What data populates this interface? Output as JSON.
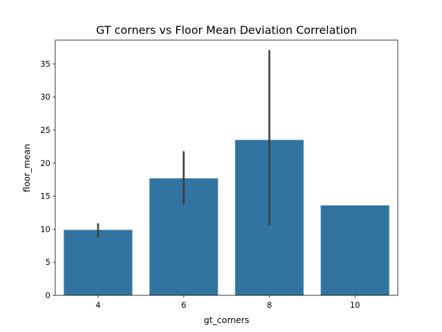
{
  "chart_data": {
    "type": "bar",
    "title": "GT corners vs Floor Mean Deviation Correlation",
    "xlabel": "gt_corners",
    "ylabel": "floor_mean",
    "categories": [
      "4",
      "6",
      "8",
      "10"
    ],
    "values": [
      9.9,
      17.7,
      23.5,
      13.6
    ],
    "error_bars": [
      {
        "low": 8.7,
        "high": 10.9
      },
      {
        "low": 13.8,
        "high": 21.8
      },
      {
        "low": 10.6,
        "high": 37.1
      },
      null
    ],
    "ylim": [
      0,
      38.6
    ],
    "yticks": [
      0,
      5,
      10,
      15,
      20,
      25,
      30,
      35
    ],
    "grid": false,
    "colors": {
      "bar": "#3274a1",
      "error_bar": "#3d3d3d",
      "axis": "#000000"
    }
  }
}
